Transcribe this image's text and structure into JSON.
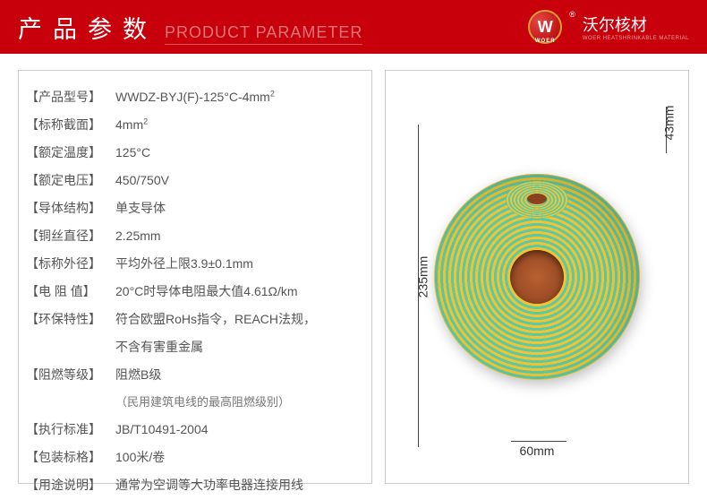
{
  "header": {
    "title_cn": "产品参数",
    "title_en": "PRODUCT PARAMETER",
    "brand_logo": "W",
    "brand_sub": "WOER",
    "brand_cn": "沃尔核材",
    "brand_tag": "WOER HEATSHRINKABLE MATERIAL",
    "reg": "®"
  },
  "specs": [
    {
      "label": "【产品型号】",
      "value": "WWDZ-BYJ(F)-125°C-4mm",
      "sup": "2"
    },
    {
      "label": "【标称截面】",
      "value": "4mm",
      "sup": "2"
    },
    {
      "label": "【额定温度】",
      "value": "125°C"
    },
    {
      "label": "【额定电压】",
      "value": "450/750V"
    },
    {
      "label": "【导体结构】",
      "value": "单支导体"
    },
    {
      "label": "【铜丝直径】",
      "value": "2.25mm"
    },
    {
      "label": "【标称外径】",
      "value": "平均外径上限3.9±0.1mm"
    },
    {
      "label": "【电 阻 值】",
      "value": "20°C时导体电阻最大值4.61Ω/km"
    },
    {
      "label": "【环保特性】",
      "value": "符合欧盟RoHs指令，REACH法规，"
    },
    {
      "label": "",
      "value": "不含有害重金属"
    },
    {
      "label": "【阻燃等级】",
      "value": "阻燃B级"
    },
    {
      "label": "",
      "value": "（民用建筑电线的最高阻燃级别）",
      "note": true
    },
    {
      "label": "【执行标准】",
      "value": "JB/T10491-2004"
    },
    {
      "label": "【包装标格】",
      "value": "100米/卷"
    },
    {
      "label": "【用途说明】",
      "value": "通常为空调等大功率电器连接用线"
    }
  ],
  "dimensions": {
    "height": "235mm",
    "thickness": "43mm",
    "core": "60mm"
  },
  "colors": {
    "header_bg": "#c7000b",
    "coil_yellow": "#f4c430",
    "coil_green": "#5ac9a8",
    "border": "#cccccc"
  }
}
